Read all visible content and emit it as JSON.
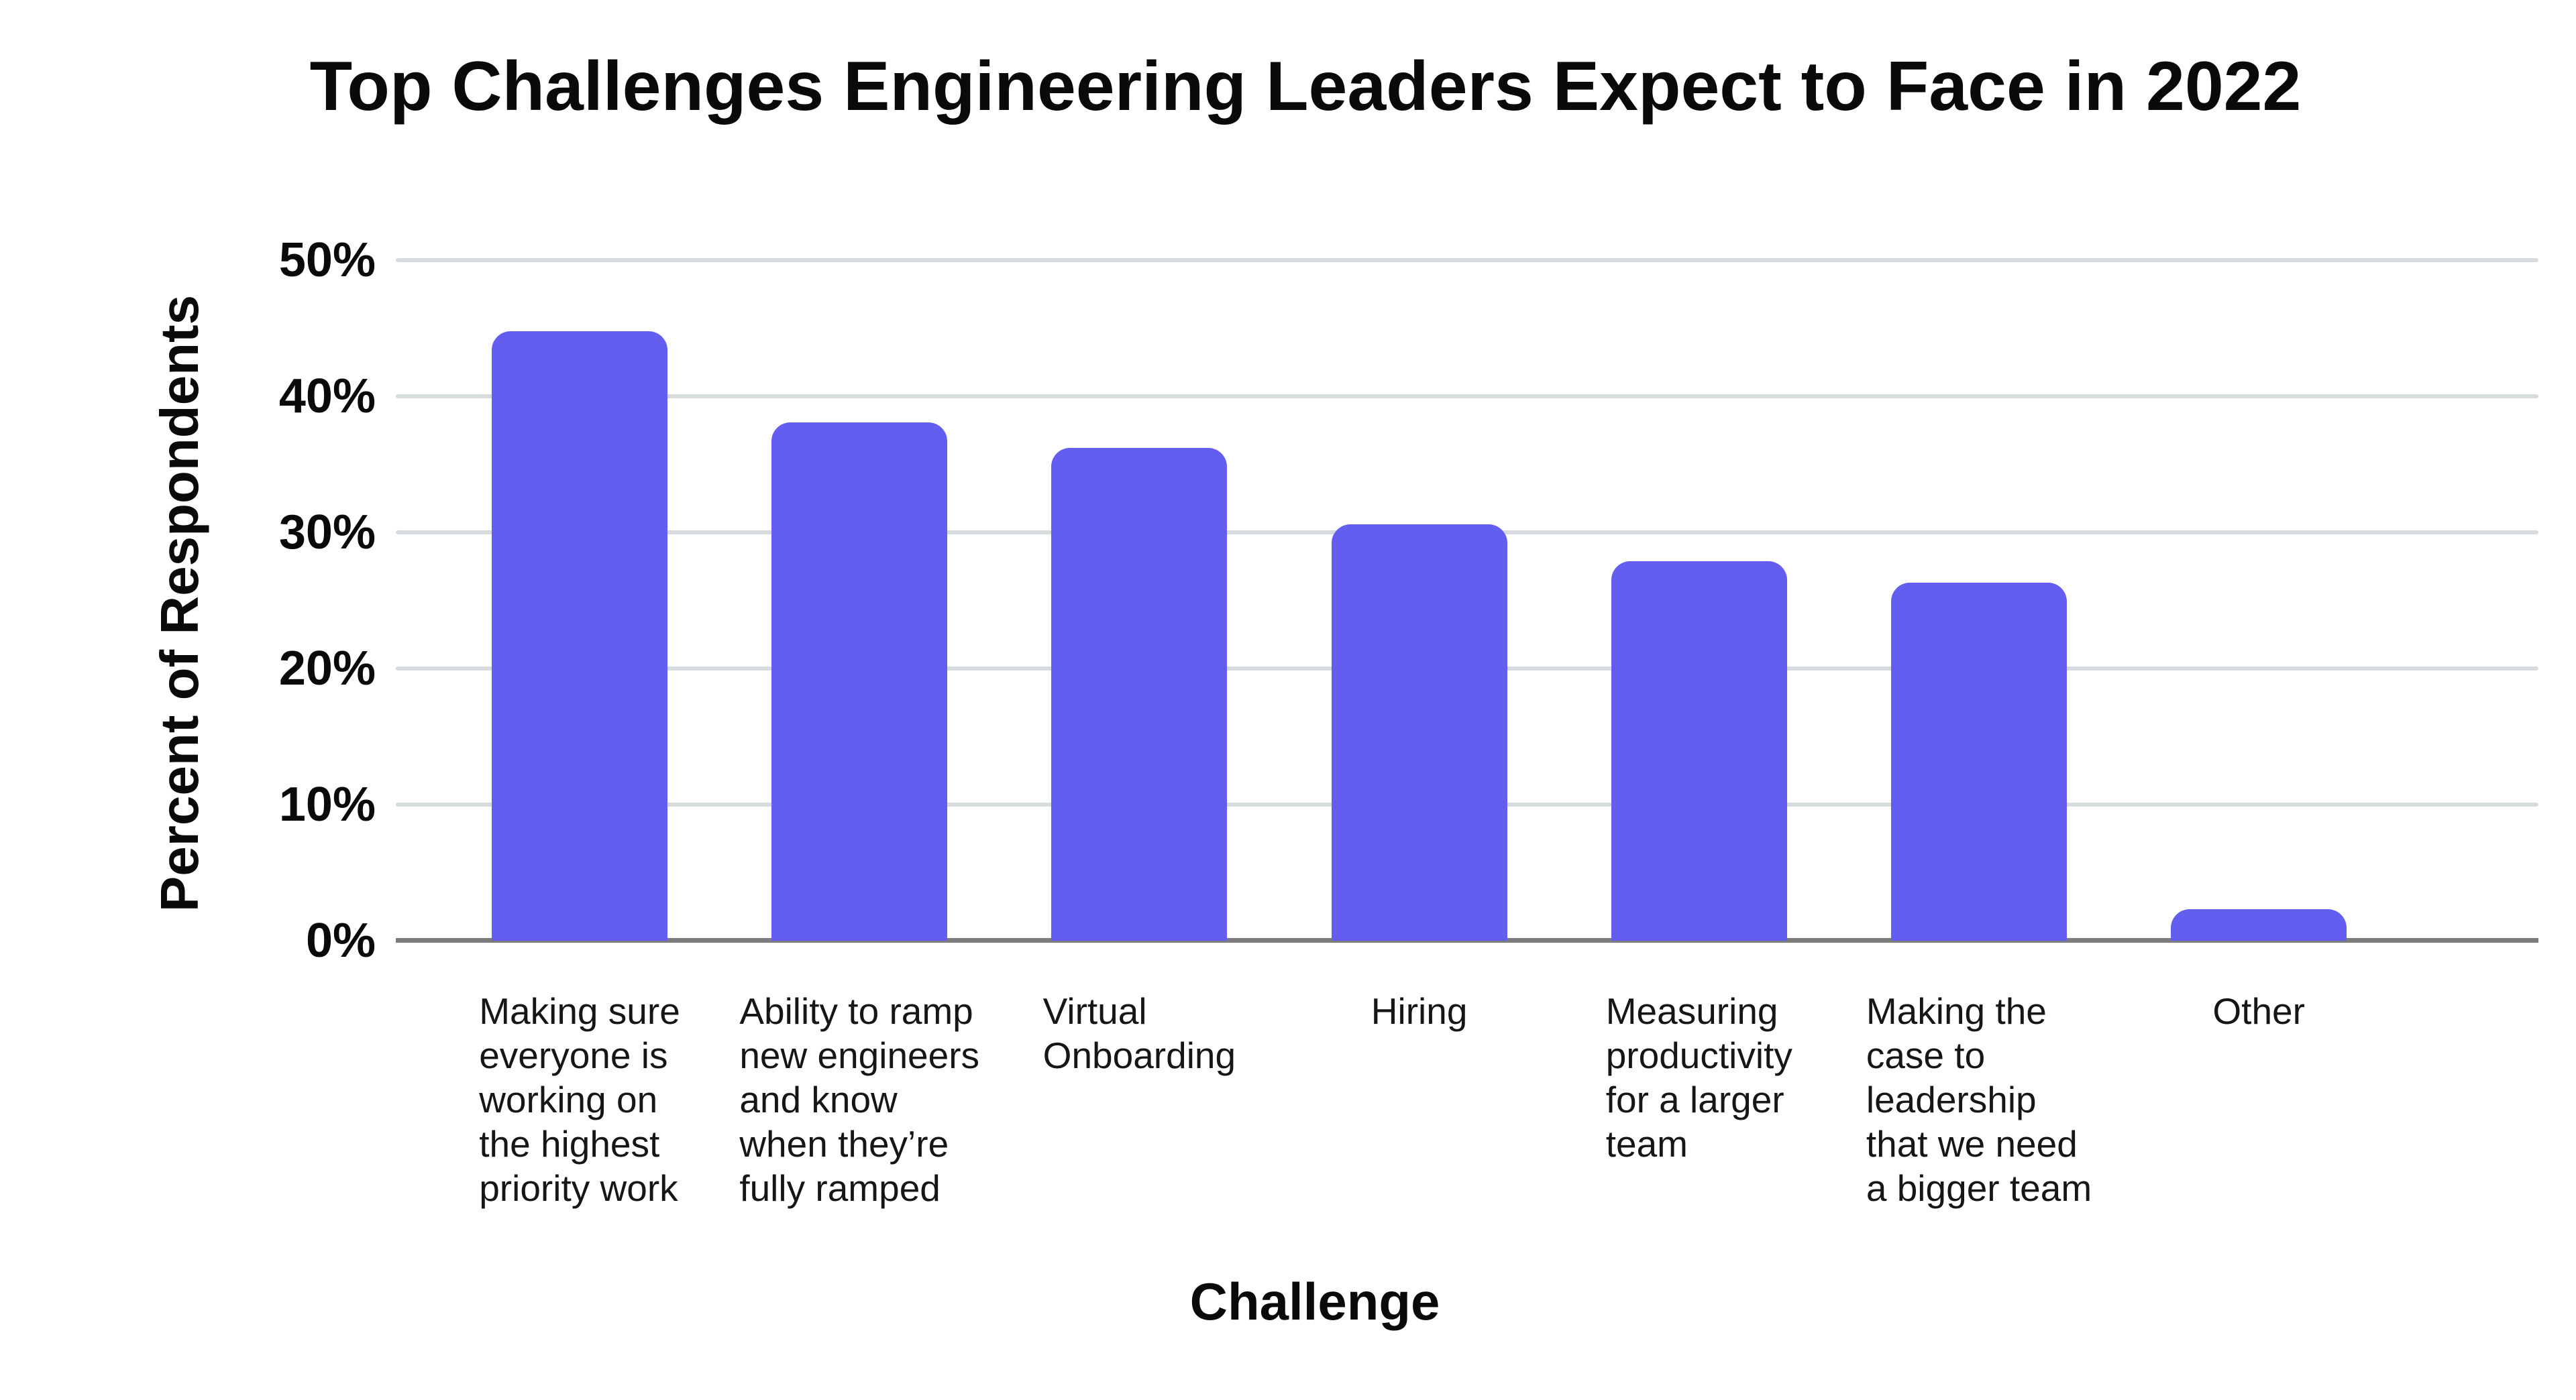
{
  "chart_data": {
    "type": "bar",
    "title": "Top Challenges Engineering Leaders Expect to Face in 2022",
    "xlabel": "Challenge",
    "ylabel": "Percent of Respondents",
    "categories": [
      "Making sure everyone is working on the highest priority work",
      "Ability to ramp new engineers and know when they’re fully ramped",
      "Virtual Onboarding",
      "Hiring",
      "Measuring productivity for a larger team",
      "Making the case to leadership that we need a bigger team",
      "Other"
    ],
    "category_lines": [
      [
        "Making sure",
        "everyone is",
        "working on",
        "the highest",
        "priority work"
      ],
      [
        "Ability to ramp",
        "new engineers",
        "and know",
        "when they’re",
        "fully ramped"
      ],
      [
        "Virtual",
        "Onboarding"
      ],
      [
        "Hiring"
      ],
      [
        "Measuring",
        "productivity",
        "for a larger",
        "team"
      ],
      [
        "Making the",
        "case to",
        "leadership",
        "that we need",
        "a bigger team"
      ],
      [
        "Other"
      ]
    ],
    "values": [
      44.8,
      38.1,
      36.2,
      30.6,
      27.9,
      26.3,
      2.3
    ],
    "unit": "%",
    "ylim": [
      0,
      50
    ],
    "yticks": [
      0,
      10,
      20,
      30,
      40,
      50
    ],
    "ytick_labels": [
      "0%",
      "10%",
      "20%",
      "30%",
      "40%",
      "50%"
    ],
    "grid": true,
    "legend": "none",
    "colors": {
      "bar": "#635EF0",
      "gridline": "#D6DCDE",
      "axis_line": "#7D7D7D",
      "title_text": "#0A0A0A",
      "label_text": "#161616"
    }
  }
}
